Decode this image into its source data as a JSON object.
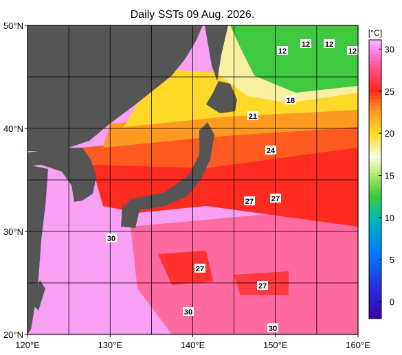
{
  "title": "Daily SSTs 09 Aug. 2026.",
  "map": {
    "lonlim": [
      120,
      160
    ],
    "latlim": [
      20,
      50
    ],
    "grid_step": 5,
    "lon_ticks": [
      {
        "value": 120,
        "label": "120°E"
      },
      {
        "value": 130,
        "label": "130°E"
      },
      {
        "value": 140,
        "label": "140°E"
      },
      {
        "value": 150,
        "label": "150°E"
      },
      {
        "value": 160,
        "label": "160°E"
      }
    ],
    "lat_ticks": [
      {
        "value": 20,
        "label": "20°N"
      },
      {
        "value": 30,
        "label": "30°N"
      },
      {
        "value": 40,
        "label": "40°N"
      },
      {
        "value": 50,
        "label": "50°N"
      }
    ],
    "contour_labels": [
      "12",
      "12",
      "12",
      "12",
      "18",
      "21",
      "24",
      "27",
      "27",
      "30",
      "27",
      "27",
      "30",
      "30"
    ]
  },
  "colorbar": {
    "unit": "[°C]",
    "lim": [
      -2,
      31.1
    ],
    "ticks": [
      0,
      5,
      10,
      15,
      20,
      25,
      30
    ]
  }
}
